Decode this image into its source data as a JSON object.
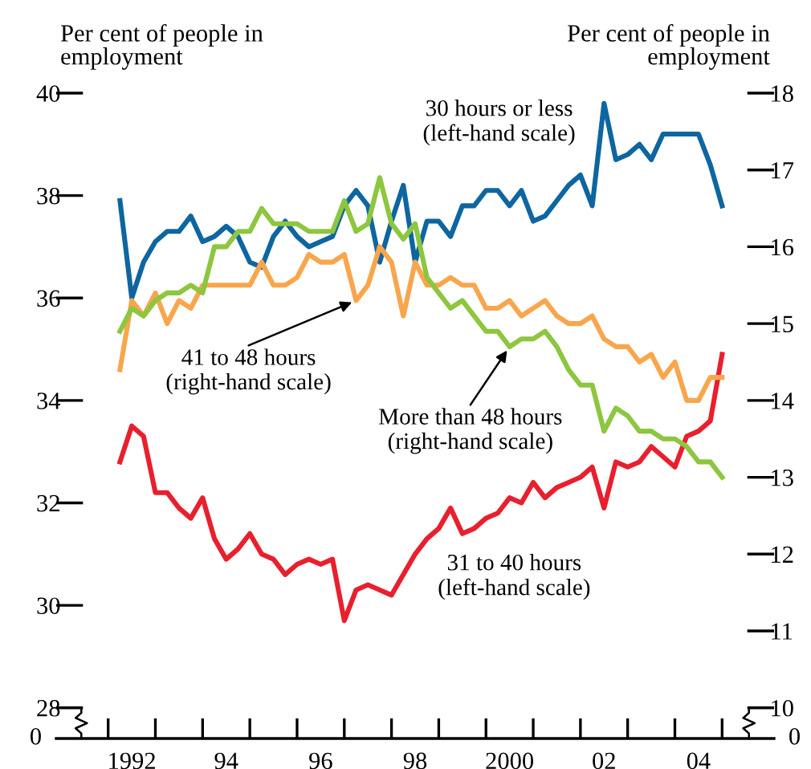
{
  "chart_data": {
    "type": "line",
    "ylabel": "Per cent of people in\nemployment",
    "y2label": "Per cent of people in\nemployment",
    "annotations": [
      "0",
      "0"
    ],
    "x": [
      1991.75,
      1992,
      1992.25,
      1992.5,
      1992.75,
      1993,
      1993.25,
      1993.5,
      1993.75,
      1994,
      1994.25,
      1994.5,
      1994.75,
      1995,
      1995.25,
      1995.5,
      1995.75,
      1996,
      1996.25,
      1996.5,
      1996.75,
      1997,
      1997.25,
      1997.5,
      1997.75,
      1998,
      1998.25,
      1998.5,
      1998.75,
      1999,
      1999.25,
      1999.5,
      1999.75,
      2000,
      2000.25,
      2000.5,
      2000.75,
      2001,
      2001.25,
      2001.5,
      2001.75,
      2002,
      2002.25,
      2002.5,
      2002.75,
      2003,
      2003.25,
      2003.5,
      2003.75,
      2004,
      2004.25,
      2004.5
    ],
    "series": [
      {
        "name": "30 hours or less\n(left-hand scale)",
        "color": "#0e66a0",
        "values": [
          37.9,
          36.0,
          36.7,
          37.1,
          37.3,
          37.3,
          37.6,
          37.1,
          37.2,
          37.4,
          37.2,
          36.7,
          36.6,
          37.2,
          37.5,
          37.2,
          37.0,
          37.1,
          37.2,
          37.8,
          38.1,
          37.8,
          36.7,
          37.5,
          38.2,
          36.7,
          37.5,
          37.5,
          37.2,
          37.8,
          37.8,
          38.1,
          38.1,
          37.8,
          38.1,
          37.5,
          37.6,
          37.9,
          38.2,
          38.4,
          37.8,
          39.8,
          38.7,
          38.8,
          39.0,
          38.7,
          39.2,
          39.2,
          39.2,
          39.2,
          38.6,
          37.8
        ]
      },
      {
        "name": "31 to 40 hours\n(left-hand scale)",
        "color": "#e8202e",
        "values": [
          32.8,
          33.5,
          33.3,
          32.2,
          32.2,
          31.9,
          31.7,
          32.1,
          31.3,
          30.9,
          31.1,
          31.4,
          31.0,
          30.9,
          30.6,
          30.8,
          30.9,
          30.8,
          30.9,
          29.7,
          30.3,
          30.4,
          30.3,
          30.2,
          30.6,
          31.0,
          31.3,
          31.5,
          31.9,
          31.4,
          31.5,
          31.7,
          31.8,
          32.1,
          32.0,
          32.4,
          32.1,
          32.3,
          32.4,
          32.5,
          32.7,
          31.9,
          32.8,
          32.7,
          32.8,
          33.1,
          32.9,
          32.7,
          33.3,
          33.4,
          33.6,
          34.9
        ]
      },
      {
        "name": "41 to 48 hours\n(right-hand scale)",
        "color": "#f8a64d",
        "axis": "y2",
        "values": [
          14.4,
          15.3,
          15.1,
          15.4,
          15.0,
          15.3,
          15.2,
          15.5,
          15.5,
          15.5,
          15.5,
          15.5,
          15.8,
          15.5,
          15.5,
          15.6,
          15.9,
          15.8,
          15.8,
          15.9,
          15.3,
          15.5,
          16.0,
          15.8,
          15.1,
          15.8,
          15.5,
          15.5,
          15.6,
          15.5,
          15.5,
          15.2,
          15.2,
          15.3,
          15.1,
          15.2,
          15.3,
          15.1,
          15.0,
          15.0,
          15.1,
          14.8,
          14.7,
          14.7,
          14.5,
          14.6,
          14.3,
          14.5,
          14.0,
          14.0,
          14.3,
          14.3
        ]
      },
      {
        "name": "More than 48 hours\n(right-hand scale)",
        "color": "#8dc63f",
        "axis": "y2",
        "values": [
          14.9,
          15.2,
          15.1,
          15.3,
          15.4,
          15.4,
          15.5,
          15.4,
          16.0,
          16.0,
          16.2,
          16.2,
          16.5,
          16.3,
          16.3,
          16.3,
          16.2,
          16.2,
          16.2,
          16.6,
          16.2,
          16.3,
          16.9,
          16.3,
          16.1,
          16.3,
          15.6,
          15.4,
          15.2,
          15.3,
          15.1,
          14.9,
          14.9,
          14.7,
          14.8,
          14.8,
          14.9,
          14.7,
          14.4,
          14.2,
          14.2,
          13.6,
          13.9,
          13.8,
          13.6,
          13.6,
          13.5,
          13.5,
          13.4,
          13.2,
          13.2,
          13.0
        ]
      }
    ],
    "xlim": [
      1990.4,
      2005.6
    ],
    "xticks": [
      {
        "value": 1991.5,
        "label": null
      },
      {
        "value": 1992,
        "label": "1992"
      },
      {
        "value": 1992.5,
        "label": null
      },
      {
        "value": 1993.5,
        "label": null
      },
      {
        "value": 1994,
        "label": "94"
      },
      {
        "value": 1994.5,
        "label": null
      },
      {
        "value": 1995.5,
        "label": null
      },
      {
        "value": 1996,
        "label": "96"
      },
      {
        "value": 1996.5,
        "label": null
      },
      {
        "value": 1997.5,
        "label": null
      },
      {
        "value": 1998,
        "label": "98"
      },
      {
        "value": 1998.5,
        "label": null
      },
      {
        "value": 1999.5,
        "label": null
      },
      {
        "value": 2000,
        "label": "2000"
      },
      {
        "value": 2000.5,
        "label": null
      },
      {
        "value": 2001.5,
        "label": null
      },
      {
        "value": 2002,
        "label": "02"
      },
      {
        "value": 2002.5,
        "label": null
      },
      {
        "value": 2003.5,
        "label": null
      },
      {
        "value": 2004,
        "label": "04"
      },
      {
        "value": 2004.5,
        "label": null
      }
    ],
    "ylim": [
      27.4,
      40
    ],
    "yticks": [
      28,
      30,
      32,
      34,
      36,
      38,
      40
    ],
    "y2lim": [
      9.6,
      18
    ],
    "y2ticks": [
      10,
      11,
      12,
      13,
      14,
      15,
      16,
      17,
      18
    ]
  }
}
